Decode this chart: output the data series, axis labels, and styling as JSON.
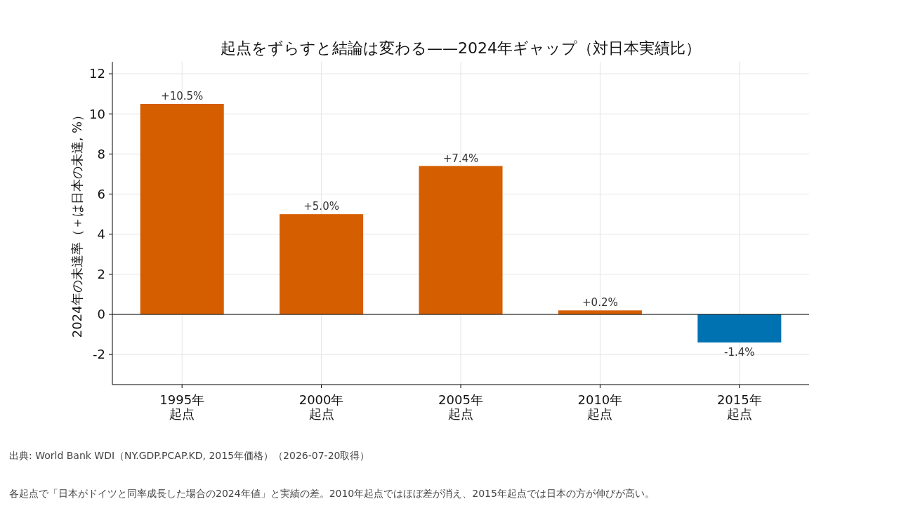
{
  "chart_data": {
    "type": "bar",
    "title": "起点をずらすと結論は変わる——2024年ギャップ（対日本実績比）",
    "ylabel": "2024年の未達率（＋は日本の未達, %）",
    "categories": [
      "1995年起点",
      "2000年起点",
      "2005年起点",
      "2010年起点",
      "2015年起点"
    ],
    "values": [
      10.5,
      5.0,
      7.4,
      0.2,
      -1.4
    ],
    "colors": [
      "#d55e00",
      "#d55e00",
      "#d55e00",
      "#d55e00",
      "#0072b2"
    ],
    "value_labels": [
      "+10.5%",
      "+5.0%",
      "+7.4%",
      "+0.2%",
      "-1.4%"
    ],
    "ylim": [
      -3.5,
      12.6
    ],
    "yticks": [
      -2,
      0,
      2,
      4,
      6,
      8,
      10,
      12
    ],
    "grid": true,
    "ref_lines": [
      {
        "axis": "y",
        "value": 0,
        "color": "#000000"
      }
    ],
    "annotations": [
      "出典: World Bank WDI（NY.GDP.PCAP.KD, 2015年価格）（2026-07-20取得）",
      "各起点で「日本がドイツと同率成長した場合の2024年値」と実績の差。2010年起点ではほぼ差が消え、2015年起点では日本の方が伸びが高い。"
    ]
  }
}
